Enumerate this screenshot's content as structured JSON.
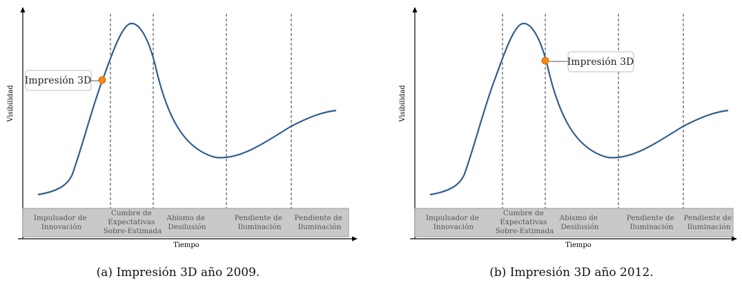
{
  "figures": [
    {
      "caption": "(a) Impresión 3D año 2009.",
      "ylabel": "Visibilidad",
      "xlabel": "Tiempo",
      "callout": "Impresión 3D",
      "phases": [
        [
          "Impulsador de",
          "Innovación"
        ],
        [
          "Cumbre de",
          "Expectativas",
          "Sobre-Estimada"
        ],
        [
          "Abismo de",
          "Desilusión"
        ],
        [
          "Pendiente de",
          "Iluminación"
        ],
        [
          "Pendiente de",
          "Iluminación"
        ]
      ]
    },
    {
      "caption": "(b) Impresión 3D año 2012.",
      "ylabel": "Visibilidad",
      "xlabel": "Tiempo",
      "callout": "Impresión 3D",
      "phases": [
        [
          "Impulsador de",
          "Innovación"
        ],
        [
          "Cumbre de",
          "Expectativas",
          "Sobre-Estimada"
        ],
        [
          "Abismo de",
          "Desilusión"
        ],
        [
          "Pendiente de",
          "Iluminación"
        ],
        [
          "Pendiente de",
          "Iluminación"
        ]
      ]
    }
  ],
  "colors": {
    "curve": "#2f5c8f",
    "marker": "#f28a1a",
    "band": "#c9c9c9"
  }
}
